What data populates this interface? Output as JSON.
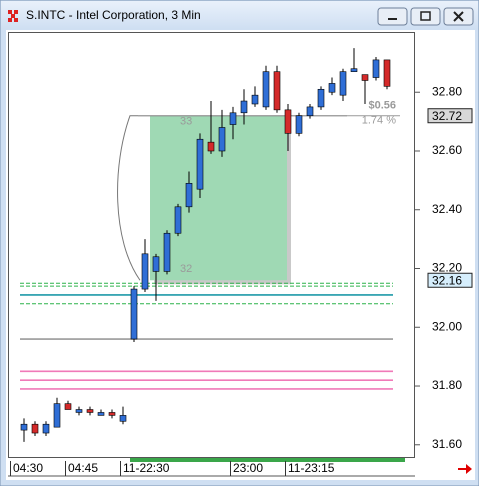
{
  "chart_data": {
    "type": "candlestick",
    "title": "S.INTC - Intel Corporation, 3 Min",
    "categories": [
      "04:30",
      null,
      null,
      null,
      null,
      "04:45",
      null,
      null,
      null,
      null,
      "11-22:30",
      null,
      null,
      null,
      null,
      null,
      null,
      null,
      null,
      null,
      "23:00",
      null,
      null,
      null,
      null,
      "11-23:15",
      null,
      null,
      null,
      null,
      null,
      null,
      null,
      null
    ],
    "open": [
      31.65,
      31.67,
      31.64,
      31.66,
      31.74,
      31.71,
      31.72,
      31.7,
      31.71,
      31.68,
      31.96,
      32.13,
      32.19,
      32.19,
      32.32,
      32.41,
      32.47,
      32.63,
      32.6,
      32.69,
      32.73,
      32.76,
      32.75,
      32.87,
      32.74,
      32.66,
      32.72,
      32.75,
      32.8,
      32.79,
      32.87,
      32.86,
      32.85,
      32.91
    ],
    "high": [
      31.69,
      31.68,
      31.68,
      31.76,
      31.75,
      31.73,
      31.73,
      31.72,
      31.72,
      31.73,
      32.14,
      32.3,
      32.25,
      32.33,
      32.42,
      32.53,
      32.66,
      32.77,
      32.74,
      32.75,
      32.81,
      32.82,
      32.89,
      32.89,
      32.76,
      32.73,
      32.76,
      32.82,
      32.85,
      32.88,
      32.95,
      32.86,
      32.92,
      32.91
    ],
    "low": [
      31.61,
      31.63,
      31.63,
      31.66,
      31.72,
      31.7,
      31.7,
      31.7,
      31.69,
      31.67,
      31.95,
      32.12,
      32.09,
      32.18,
      32.31,
      32.39,
      32.44,
      32.59,
      32.58,
      32.64,
      32.69,
      32.75,
      32.74,
      32.73,
      32.6,
      32.65,
      32.71,
      32.74,
      32.79,
      32.77,
      32.87,
      32.76,
      32.84,
      32.81
    ],
    "close": [
      31.67,
      31.64,
      31.67,
      31.74,
      31.72,
      31.72,
      31.71,
      31.71,
      31.7,
      31.7,
      32.13,
      32.25,
      32.24,
      32.32,
      32.41,
      32.49,
      32.64,
      32.6,
      32.68,
      32.73,
      32.77,
      32.79,
      32.87,
      32.74,
      32.66,
      32.72,
      32.75,
      32.81,
      32.83,
      32.87,
      32.88,
      32.84,
      32.91,
      32.82
    ],
    "up_color": "#2f6ed6",
    "down_color": "#d42a2a",
    "ylim": [
      31.555,
      33.005
    ],
    "yticks": [
      {
        "value": 31.6,
        "label": "31.60"
      },
      {
        "value": 31.8,
        "label": "31.80"
      },
      {
        "value": 32.0,
        "label": "32.00"
      },
      {
        "value": 32.2,
        "label": "32.20"
      },
      {
        "value": 32.4,
        "label": "32.40"
      },
      {
        "value": 32.6,
        "label": "32.60"
      },
      {
        "value": 32.8,
        "label": "32.80"
      }
    ],
    "price_markers": [
      {
        "value": 32.72,
        "color": "#d8d8d8"
      },
      {
        "value": 32.16,
        "color": "#d6eefc"
      }
    ],
    "levels": [
      {
        "value": 32.15,
        "color": "#2cb24a",
        "dashed": true
      },
      {
        "value": 32.14,
        "color": "#2cb24a",
        "dashed": true
      },
      {
        "value": 32.11,
        "color": "#1e9aa8",
        "dashed": false
      },
      {
        "value": 32.08,
        "color": "#2cb24a",
        "dashed": true
      },
      {
        "value": 31.96,
        "color": "#9a9a9a",
        "dashed": false
      },
      {
        "value": 31.85,
        "color": "#f07ab8",
        "dashed": false
      },
      {
        "value": 31.82,
        "color": "#f07ab8",
        "dashed": false
      },
      {
        "value": 31.79,
        "color": "#f07ab8",
        "dashed": false
      }
    ],
    "annotations": {
      "change": "$0.56",
      "percent": "1.74 %",
      "bars_top": "33",
      "bars_bottom": "32"
    }
  }
}
